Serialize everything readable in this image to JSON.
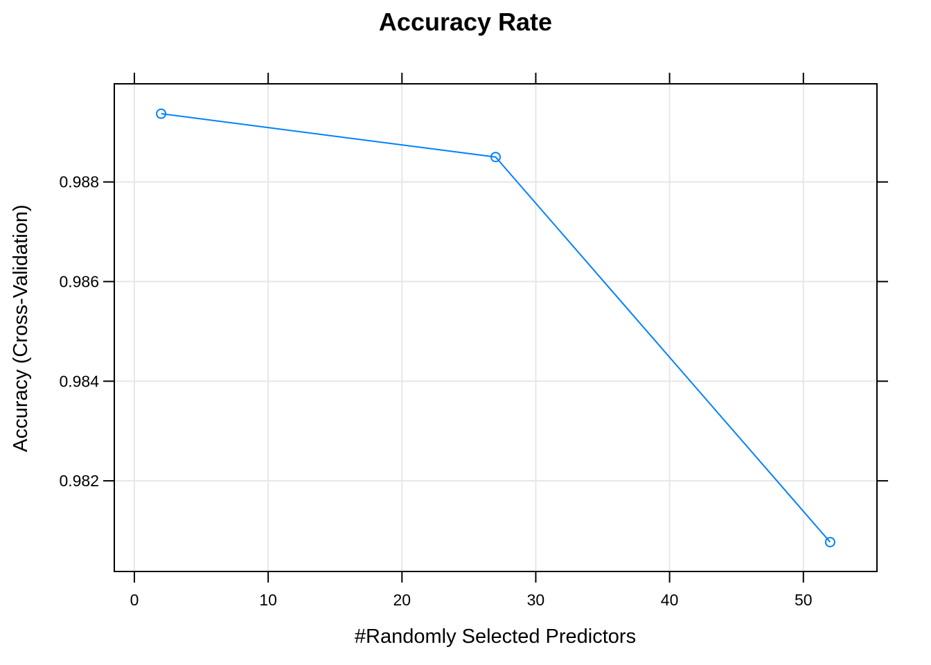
{
  "chart_data": {
    "type": "line",
    "title": "Accuracy Rate",
    "xlabel": "#Randomly Selected Predictors",
    "ylabel": "Accuracy (Cross-Validation)",
    "x": [
      2,
      27,
      52
    ],
    "series": [
      {
        "values": [
          0.98937,
          0.9885,
          0.98077
        ],
        "color": "#0080ff",
        "marker": "open-circle"
      }
    ],
    "xlim": [
      -1.5,
      55.5
    ],
    "ylim": [
      0.98018,
      0.98997
    ],
    "xticks": [
      0,
      10,
      20,
      30,
      40,
      50
    ],
    "yticks": [
      0.982,
      0.984,
      0.986,
      0.988
    ],
    "xtick_labels": [
      "0",
      "10",
      "20",
      "30",
      "40",
      "50"
    ],
    "ytick_labels": [
      "0.982",
      "0.984",
      "0.986",
      "0.988"
    ],
    "grid": true,
    "gridColor": "#e6e6e6",
    "legend": "none"
  }
}
